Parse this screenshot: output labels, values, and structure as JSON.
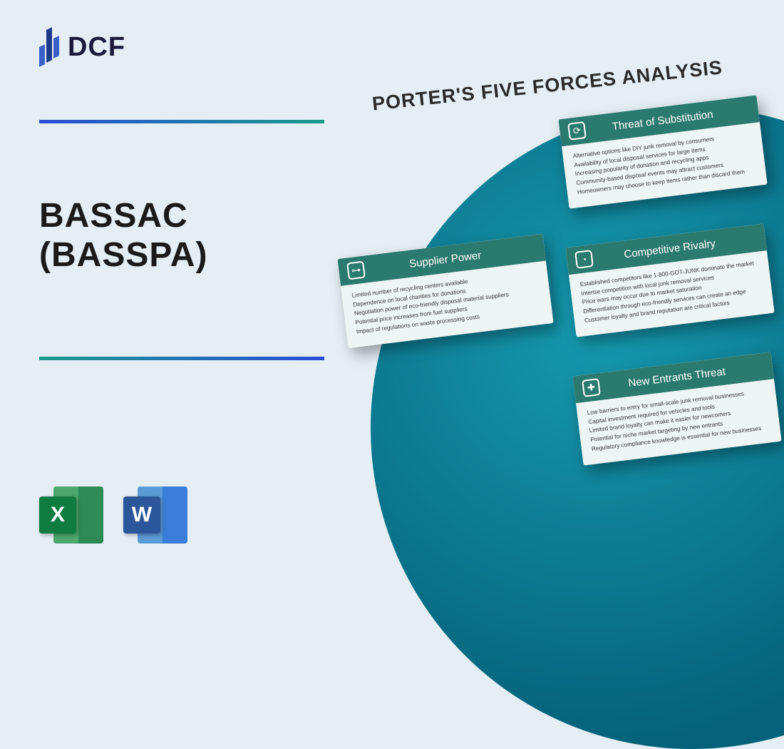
{
  "logo": {
    "text": "DCF"
  },
  "colors": {
    "background": "#e4eef4",
    "divider_gradient_start": "#2b4bd8",
    "divider_gradient_end": "#1a9b8a",
    "card_header": "#2b7a6f",
    "card_body": "#eef5f5",
    "circle_inner": "#1699ae",
    "circle_outer": "#05627a",
    "title_text": "#1a1a1a"
  },
  "title": {
    "line1": "BASSAC",
    "line2": "(BASSPA)"
  },
  "file_icons": {
    "excel": "X",
    "word": "W"
  },
  "analysis_title": "PORTER'S FIVE FORCES ANALYSIS",
  "cards": {
    "substitution": {
      "title": "Threat of Substitution",
      "icon": "⟳",
      "lines": [
        "Alternative options like DIY junk removal by consumers",
        "Availability of local disposal services for large items",
        "Increasing popularity of donation and recycling apps",
        "Community-based disposal events may attract customers",
        "Homeowners may choose to keep items rather than discard them"
      ]
    },
    "rivalry": {
      "title": "Competitive Rivalry",
      "icon": "◔",
      "lines": [
        "Established competitors like 1-800-GOT-JUNK dominate the market",
        "Intense competition with local junk removal services",
        "Price wars may occur due to market saturation",
        "Differentiation through eco-friendly services can create an edge",
        "Customer loyalty and brand reputation are critical factors"
      ]
    },
    "entrants": {
      "title": "New Entrants Threat",
      "icon": "✚",
      "lines": [
        "Low barriers to entry for small-scale junk removal businesses",
        "Capital investment required for vehicles and tools",
        "Limited brand loyalty can make it easier for newcomers",
        "Potential for niche market targeting by new entrants",
        "Regulatory compliance knowledge is essential for new businesses"
      ]
    },
    "supplier": {
      "title": "Supplier Power",
      "icon": "⊶",
      "lines": [
        "Limited number of recycling centers available",
        "Dependence on local charities for donations",
        "Negotiation power of eco-friendly disposal material suppliers",
        "Potential price increases from fuel suppliers",
        "Impact of regulations on waste processing costs"
      ]
    }
  }
}
